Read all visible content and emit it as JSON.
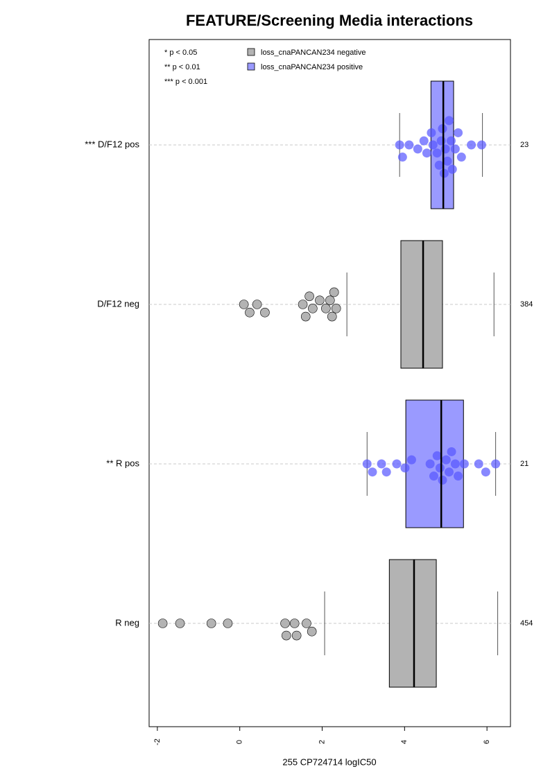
{
  "chart_data": {
    "type": "box",
    "title": "FEATURE/Screening Media interactions",
    "x_label": "255 CP724714 logIC50",
    "xlim": [
      -2.2,
      6.57
    ],
    "xticks": [
      -2,
      0,
      2,
      4,
      6
    ],
    "annotations": [
      "* p < 0.05",
      "** p < 0.01",
      "*** p < 0.001"
    ],
    "series": [
      {
        "name": "loss_cnaPANCAN234 negative",
        "color": "#b3b3b3"
      },
      {
        "name": "loss_cnaPANCAN234 positive",
        "color": "#9a9aff"
      }
    ],
    "groups": [
      {
        "label": "*** D/F12 pos",
        "n": 23,
        "series": 1,
        "whisker_low": 3.88,
        "q1": 4.64,
        "median": 4.94,
        "q3": 5.19,
        "whisker_high": 5.89,
        "points": [
          3.88,
          3.95,
          4.11,
          4.32,
          4.47,
          4.54,
          4.65,
          4.69,
          4.79,
          4.84,
          4.89,
          4.92,
          4.96,
          4.99,
          5.04,
          5.08,
          5.13,
          5.16,
          5.23,
          5.3,
          5.38,
          5.62,
          5.87
        ]
      },
      {
        "label": "D/F12 neg",
        "n": 384,
        "series": 0,
        "whisker_low": 2.6,
        "q1": 3.91,
        "median": 4.45,
        "q3": 4.92,
        "whisker_high": 6.17,
        "outliers": [
          0.1,
          0.24,
          0.42,
          0.61,
          1.53,
          1.6,
          1.69,
          1.77,
          1.94,
          2.09,
          2.19,
          2.24,
          2.29,
          2.34
        ]
      },
      {
        "label": "** R pos",
        "n": 21,
        "series": 1,
        "whisker_low": 3.09,
        "q1": 4.03,
        "median": 4.89,
        "q3": 5.43,
        "whisker_high": 6.21,
        "points": [
          3.09,
          3.22,
          3.44,
          3.56,
          3.81,
          4.01,
          4.17,
          4.62,
          4.71,
          4.79,
          4.86,
          4.92,
          5.01,
          5.08,
          5.14,
          5.23,
          5.3,
          5.45,
          5.8,
          5.97,
          6.21
        ]
      },
      {
        "label": "R neg",
        "n": 454,
        "series": 0,
        "whisker_low": 2.06,
        "q1": 3.63,
        "median": 4.23,
        "q3": 4.77,
        "whisker_high": 6.26,
        "outliers": [
          -1.87,
          -1.45,
          -0.69,
          -0.29,
          1.1,
          1.13,
          1.33,
          1.38,
          1.62,
          1.75
        ]
      }
    ]
  }
}
